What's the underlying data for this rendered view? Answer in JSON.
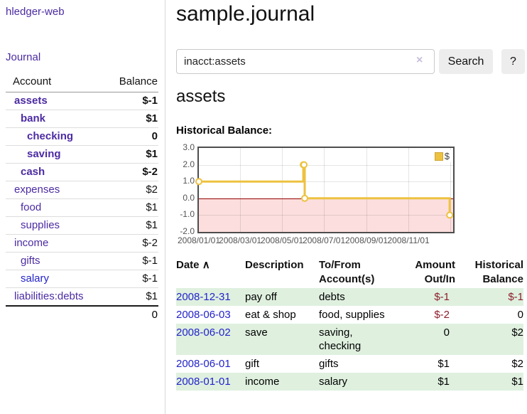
{
  "app": {
    "brand": "hledger-web"
  },
  "sidebar": {
    "journal_link": "Journal",
    "header": {
      "account": "Account",
      "balance": "Balance"
    },
    "rows": [
      {
        "name": "assets",
        "balance": "$-1"
      },
      {
        "name": "bank",
        "balance": "$1"
      },
      {
        "name": "checking",
        "balance": "0"
      },
      {
        "name": "saving",
        "balance": "$1"
      },
      {
        "name": "cash",
        "balance": "$-2"
      },
      {
        "name": "expenses",
        "balance": "$2"
      },
      {
        "name": "food",
        "balance": "$1"
      },
      {
        "name": "supplies",
        "balance": "$1"
      },
      {
        "name": "income",
        "balance": "$-2"
      },
      {
        "name": "gifts",
        "balance": "$-1"
      },
      {
        "name": "salary",
        "balance": "$-1"
      },
      {
        "name": "liabilities:debts",
        "balance": "$1"
      }
    ],
    "total": "0"
  },
  "main": {
    "title": "sample.journal",
    "search": {
      "value": "inacct:assets",
      "clear_icon": "×",
      "search_button": "Search",
      "help_button": "?"
    },
    "account_heading": "assets",
    "chart_title": "Historical Balance:"
  },
  "chart_data": {
    "type": "line",
    "interpolation": "step",
    "title": "Historical Balance",
    "series": [
      {
        "name": "$",
        "color": "#edc240",
        "points": [
          [
            "2008-01-01",
            1
          ],
          [
            "2008-06-01",
            2
          ],
          [
            "2008-06-02",
            2
          ],
          [
            "2008-06-03",
            0
          ],
          [
            "2008-12-31",
            -1
          ]
        ]
      }
    ],
    "ylim": [
      -2,
      3
    ],
    "xlim": [
      "2008-01-01",
      "2009-01-05"
    ],
    "y_ticks": [
      {
        "label": "3.0",
        "value": 3
      },
      {
        "label": "2.0",
        "value": 2
      },
      {
        "label": "1.0",
        "value": 1
      },
      {
        "label": "0.0",
        "value": 0
      },
      {
        "label": "-1.0",
        "value": -1
      },
      {
        "label": "-2.0",
        "value": -2
      }
    ],
    "x_ticks": [
      {
        "label": "2008/01/01",
        "date": "2008-01-01"
      },
      {
        "label": "2008/03/01",
        "date": "2008-03-01"
      },
      {
        "label": "2008/05/01",
        "date": "2008-05-01"
      },
      {
        "label": "2008/07/01",
        "date": "2008-07-01"
      },
      {
        "label": "2008/09/01",
        "date": "2008-09-01"
      },
      {
        "label": "2008/11/01",
        "date": "2008-11-01"
      }
    ],
    "x_gridlines": [
      "2008-03-01",
      "2008-05-01",
      "2008-07-01",
      "2008-09-01",
      "2008-11-01",
      "2009-01-01"
    ],
    "grid": true,
    "legend_position": "top-right",
    "negative_region_color": "#fcdede",
    "zero_line_color": "#940000"
  },
  "table": {
    "sort_icon": "∧",
    "columns": [
      {
        "line1": "Date",
        "line2": ""
      },
      {
        "line1": "Description",
        "line2": ""
      },
      {
        "line1": "To/From",
        "line2": "Account(s)"
      },
      {
        "line1": "Amount",
        "line2": "Out/In"
      },
      {
        "line1": "Historical",
        "line2": "Balance"
      }
    ],
    "rows": [
      {
        "date": "2008-12-31",
        "description": "pay off",
        "accounts": "debts",
        "amount": "$-1",
        "balance": "$-1"
      },
      {
        "date": "2008-06-03",
        "description": "eat & shop",
        "accounts": "food, supplies",
        "amount": "$-2",
        "balance": "0"
      },
      {
        "date": "2008-06-02",
        "description": "save",
        "accounts": "saving,\nchecking",
        "amount": "0",
        "balance": "$2"
      },
      {
        "date": "2008-06-01",
        "description": "gift",
        "accounts": "gifts",
        "amount": "$1",
        "balance": "$2"
      },
      {
        "date": "2008-01-01",
        "description": "income",
        "accounts": "salary",
        "amount": "$1",
        "balance": "$1"
      }
    ]
  }
}
